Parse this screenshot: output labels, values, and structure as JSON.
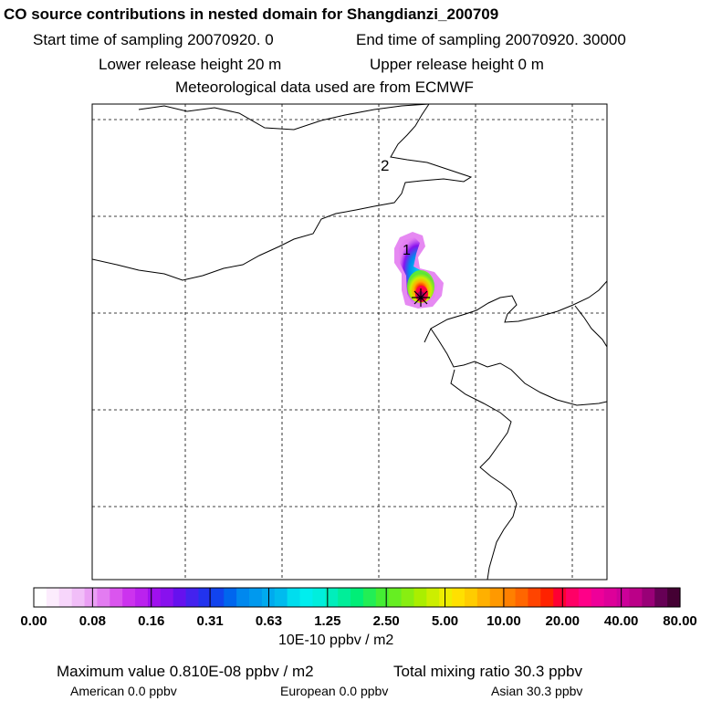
{
  "header": {
    "title": "CO  source contributions in nested domain for Shangdianzi_200709",
    "start_time": "Start time of sampling 20070920.     0",
    "end_time": "End time of sampling 20070920. 30000",
    "lower_release": "Lower release height   20 m",
    "upper_release": "Upper release height    0 m",
    "met_data": "Meteorological data used are from ECMWF"
  },
  "map": {
    "markers": [
      {
        "label": "1",
        "desc": "trajectory-day-1"
      },
      {
        "label": "2",
        "desc": "trajectory-day-2"
      }
    ],
    "receptor_symbol": "star-icon"
  },
  "colorbar": {
    "tick_labels": [
      "0.00",
      "0.08",
      "0.16",
      "0.31",
      "0.63",
      "1.25",
      "2.50",
      "5.00",
      "10.00",
      "20.00",
      "40.00",
      "80.00"
    ],
    "units": "10E-10 ppbv / m2",
    "colors": [
      "#ffffff",
      "#fcecfd",
      "#f7d6fb",
      "#f1bef8",
      "#ea9ff4",
      "#e37cf1",
      "#da55ee",
      "#cc33ee",
      "#bb22ee",
      "#a010ee",
      "#8811ee",
      "#6611ee",
      "#4422ee",
      "#2233ee",
      "#1144ee",
      "#0066ee",
      "#0088ee",
      "#0099ee",
      "#00aaee",
      "#00bbee",
      "#00ddee",
      "#00eeee",
      "#00eedd",
      "#00eebb",
      "#00ee99",
      "#00ee77",
      "#22ee55",
      "#44ee33",
      "#66ee22",
      "#88ee11",
      "#aaee00",
      "#ccee00",
      "#eeee00",
      "#ffe000",
      "#ffcc00",
      "#ffb000",
      "#ff9900",
      "#ff8000",
      "#ff6600",
      "#ff4400",
      "#ff2200",
      "#ff0033",
      "#ff0066",
      "#ff0088",
      "#ee0099",
      "#dd0099",
      "#cc0099",
      "#bb0088",
      "#990077",
      "#660055",
      "#440033"
    ]
  },
  "footer": {
    "max_value": "Maximum value  0.810E-08 ppbv / m2",
    "total": "Total mixing ratio      30.3 ppbv",
    "american": "American       0.0 ppbv",
    "european": "European       0.0 ppbv",
    "asian": "Asian      30.3 ppbv"
  }
}
